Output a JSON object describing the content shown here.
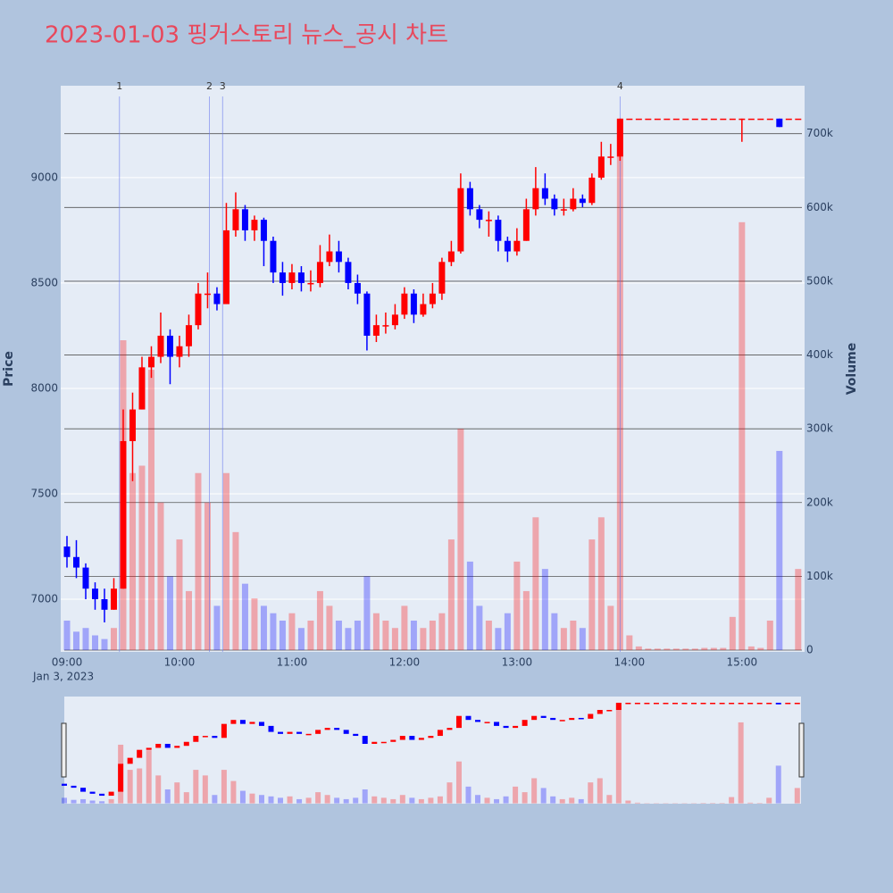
{
  "chart_data": {
    "type": "candlestick",
    "title": "2023-01-03 핑거스토리 뉴스_공시 차트",
    "y_axis_title": "Price",
    "y2_axis_title": "Volume",
    "x_date_label": "Jan 3, 2023",
    "increasing_color": "#ff0000",
    "decreasing_color": "#0000ff",
    "x": [
      "2023-01-03 09:00",
      "2023-01-03 09:05",
      "2023-01-03 09:10",
      "2023-01-03 09:15",
      "2023-01-03 09:20",
      "2023-01-03 09:25",
      "2023-01-03 09:30",
      "2023-01-03 09:35",
      "2023-01-03 09:40",
      "2023-01-03 09:45",
      "2023-01-03 09:50",
      "2023-01-03 09:55",
      "2023-01-03 10:00",
      "2023-01-03 10:05",
      "2023-01-03 10:10",
      "2023-01-03 10:15",
      "2023-01-03 10:20",
      "2023-01-03 10:25",
      "2023-01-03 10:30",
      "2023-01-03 10:35",
      "2023-01-03 10:40",
      "2023-01-03 10:45",
      "2023-01-03 10:50",
      "2023-01-03 10:55",
      "2023-01-03 11:00",
      "2023-01-03 11:05",
      "2023-01-03 11:10",
      "2023-01-03 11:15",
      "2023-01-03 11:20",
      "2023-01-03 11:25",
      "2023-01-03 11:30",
      "2023-01-03 11:35",
      "2023-01-03 11:40",
      "2023-01-03 11:45",
      "2023-01-03 11:50",
      "2023-01-03 11:55",
      "2023-01-03 12:00",
      "2023-01-03 12:05",
      "2023-01-03 12:10",
      "2023-01-03 12:15",
      "2023-01-03 12:20",
      "2023-01-03 12:25",
      "2023-01-03 12:30",
      "2023-01-03 12:35",
      "2023-01-03 12:40",
      "2023-01-03 12:45",
      "2023-01-03 12:50",
      "2023-01-03 12:55",
      "2023-01-03 13:00",
      "2023-01-03 13:05",
      "2023-01-03 13:10",
      "2023-01-03 13:15",
      "2023-01-03 13:20",
      "2023-01-03 13:25",
      "2023-01-03 13:30",
      "2023-01-03 13:35",
      "2023-01-03 13:40",
      "2023-01-03 13:45",
      "2023-01-03 13:50",
      "2023-01-03 13:55",
      "2023-01-03 14:00",
      "2023-01-03 14:05",
      "2023-01-03 14:10",
      "2023-01-03 14:15",
      "2023-01-03 14:20",
      "2023-01-03 14:25",
      "2023-01-03 14:30",
      "2023-01-03 14:35",
      "2023-01-03 14:40",
      "2023-01-03 14:45",
      "2023-01-03 14:50",
      "2023-01-03 14:55",
      "2023-01-03 15:00",
      "2023-01-03 15:05",
      "2023-01-03 15:10",
      "2023-01-03 15:15",
      "2023-01-03 15:20",
      "2023-01-03 15:25",
      "2023-01-03 15:30"
    ],
    "open": [
      7250,
      7200,
      7150,
      7050,
      7000,
      6950,
      7050,
      7750,
      7900,
      8100,
      8150,
      8250,
      8150,
      8200,
      8300,
      8450,
      8450,
      8400,
      8750,
      8850,
      8750,
      8800,
      8700,
      8550,
      8500,
      8550,
      8500,
      8500,
      8600,
      8650,
      8600,
      8500,
      8450,
      8250,
      8300,
      8300,
      8350,
      8450,
      8350,
      8400,
      8450,
      8600,
      8650,
      8950,
      8850,
      8800,
      8800,
      8700,
      8650,
      8700,
      8850,
      8950,
      8900,
      8850,
      8850,
      8900,
      8880,
      9000,
      9100,
      9100,
      9280,
      9280,
      9280,
      9280,
      9280,
      9280,
      9280,
      9280,
      9280,
      9280,
      9280,
      9280,
      9280,
      9280,
      9280,
      9280,
      9280,
      9280,
      9280
    ],
    "high": [
      7300,
      7280,
      7170,
      7080,
      7050,
      7100,
      7900,
      7980,
      8150,
      8200,
      8360,
      8280,
      8250,
      8350,
      8500,
      8550,
      8480,
      8880,
      8930,
      8870,
      8820,
      8810,
      8720,
      8600,
      8590,
      8580,
      8560,
      8680,
      8730,
      8700,
      8620,
      8540,
      8460,
      8350,
      8360,
      8400,
      8480,
      8470,
      8450,
      8500,
      8620,
      8700,
      9020,
      8980,
      8870,
      8840,
      8820,
      8720,
      8760,
      8900,
      9050,
      9020,
      8920,
      8900,
      8950,
      8920,
      9020,
      9170,
      9160,
      9280,
      9280,
      9280,
      9280,
      9280,
      9280,
      9280,
      9280,
      9280,
      9280,
      9280,
      9280,
      9280,
      9280,
      9280,
      9280,
      9280,
      9280,
      9280,
      9280
    ],
    "low": [
      7150,
      7100,
      7000,
      6950,
      6890,
      6950,
      7050,
      7560,
      7900,
      8050,
      8120,
      8020,
      8100,
      8150,
      8280,
      8380,
      8370,
      8400,
      8720,
      8700,
      8700,
      8580,
      8500,
      8440,
      8470,
      8460,
      8460,
      8480,
      8580,
      8550,
      8470,
      8400,
      8180,
      8220,
      8260,
      8280,
      8330,
      8310,
      8340,
      8380,
      8420,
      8580,
      8640,
      8820,
      8760,
      8720,
      8650,
      8600,
      8630,
      8700,
      8820,
      8870,
      8820,
      8820,
      8840,
      8860,
      8870,
      8990,
      9060,
      9080,
      9280,
      9280,
      9280,
      9280,
      9280,
      9280,
      9280,
      9280,
      9280,
      9280,
      9280,
      9280,
      9170,
      9280,
      9280,
      9280,
      9240,
      9280,
      9280
    ],
    "close": [
      7200,
      7150,
      7050,
      7000,
      6950,
      7050,
      7750,
      7900,
      8100,
      8150,
      8250,
      8150,
      8200,
      8300,
      8450,
      8450,
      8400,
      8750,
      8850,
      8750,
      8800,
      8700,
      8550,
      8500,
      8550,
      8500,
      8500,
      8600,
      8650,
      8600,
      8500,
      8450,
      8250,
      8300,
      8300,
      8350,
      8450,
      8350,
      8400,
      8450,
      8600,
      8650,
      8950,
      8850,
      8800,
      8800,
      8700,
      8650,
      8700,
      8850,
      8950,
      8900,
      8850,
      8850,
      8900,
      8880,
      9000,
      9100,
      9100,
      9280,
      9280,
      9280,
      9280,
      9280,
      9280,
      9280,
      9280,
      9280,
      9280,
      9280,
      9280,
      9280,
      9280,
      9280,
      9280,
      9280,
      9240,
      9280,
      9280
    ],
    "volume": [
      40000,
      25000,
      30000,
      20000,
      15000,
      30000,
      420000,
      240000,
      250000,
      380000,
      200000,
      100000,
      150000,
      80000,
      240000,
      200000,
      60000,
      240000,
      160000,
      90000,
      70000,
      60000,
      50000,
      40000,
      50000,
      30000,
      40000,
      80000,
      60000,
      40000,
      30000,
      40000,
      100000,
      50000,
      40000,
      30000,
      60000,
      40000,
      30000,
      40000,
      50000,
      150000,
      300000,
      120000,
      60000,
      40000,
      30000,
      50000,
      120000,
      80000,
      180000,
      110000,
      50000,
      30000,
      40000,
      30000,
      150000,
      180000,
      60000,
      720000,
      20000,
      5000,
      2000,
      2000,
      2000,
      2000,
      2000,
      2000,
      3000,
      3000,
      3000,
      45000,
      580000,
      5000,
      3000,
      40000,
      270000,
      0,
      110000
    ],
    "xlim": [
      "2023-01-03 09:00",
      "2023-01-03 15:32"
    ],
    "xticks": [
      {
        "value": "2023-01-03 09:00",
        "label": "09:00"
      },
      {
        "value": "2023-01-03 10:00",
        "label": "10:00"
      },
      {
        "value": "2023-01-03 11:00",
        "label": "11:00"
      },
      {
        "value": "2023-01-03 12:00",
        "label": "12:00"
      },
      {
        "value": "2023-01-03 13:00",
        "label": "13:00"
      },
      {
        "value": "2023-01-03 14:00",
        "label": "14:00"
      },
      {
        "value": "2023-01-03 15:00",
        "label": "15:00"
      }
    ],
    "ylim": [
      6750,
      9436
    ],
    "yticks": [
      7000,
      7500,
      8000,
      8500,
      9000
    ],
    "y2lim": [
      -2400,
      765000
    ],
    "y2ticks": [
      0,
      {
        "value": 100000,
        "label": "100k"
      },
      {
        "value": 200000,
        "label": "200k"
      },
      {
        "value": 300000,
        "label": "300k"
      },
      {
        "value": 400000,
        "label": "400k"
      },
      {
        "value": 500000,
        "label": "500k"
      },
      {
        "value": 600000,
        "label": "600k"
      },
      {
        "value": 700000,
        "label": "700k"
      }
    ],
    "annotations": [
      {
        "x": "2023-01-03 09:28",
        "text": "1"
      },
      {
        "x": "2023-01-03 10:16",
        "text": "2"
      },
      {
        "x": "2023-01-03 10:23",
        "text": "3"
      },
      {
        "x": "2023-01-03 13:55",
        "text": "4"
      }
    ],
    "grid": true,
    "range_slider": true
  }
}
